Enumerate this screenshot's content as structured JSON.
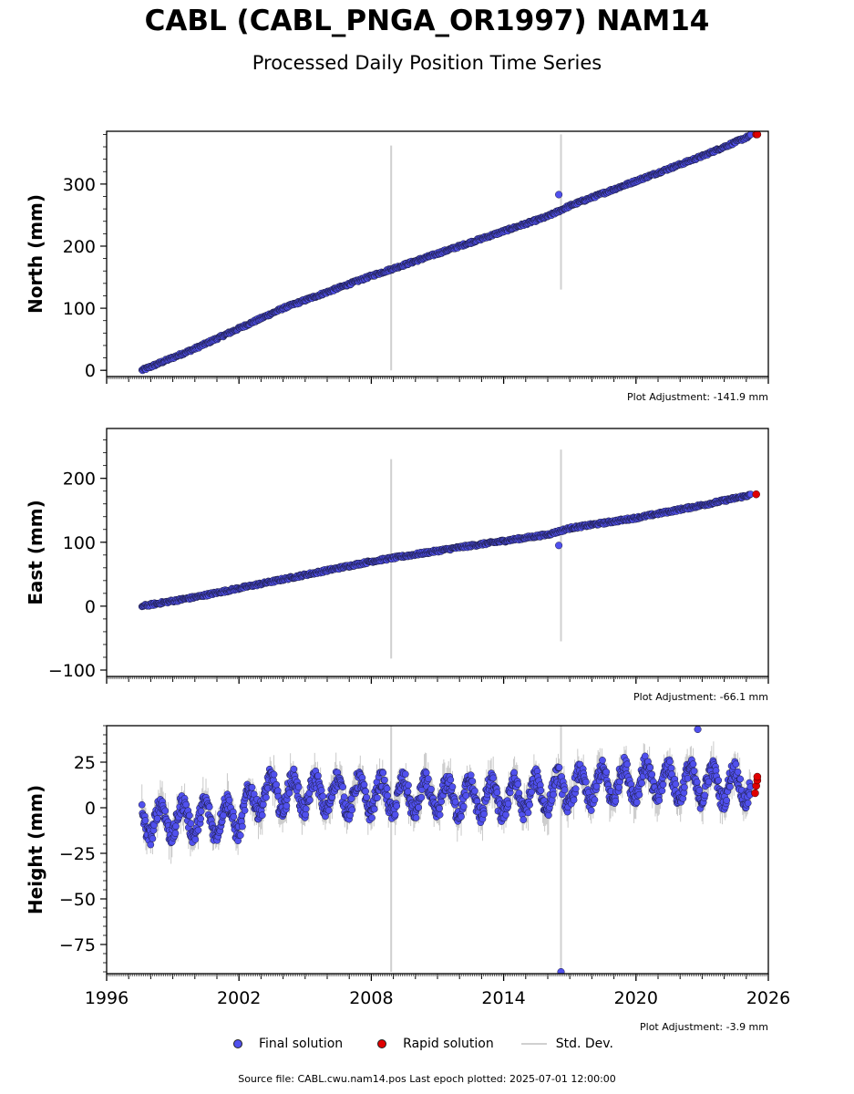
{
  "title": "CABL (CABL_PNGA_OR1997) NAM14",
  "subtitle": "Processed Daily Position Time Series",
  "legend": {
    "final": "Final solution",
    "rapid": "Rapid solution",
    "std": "Std. Dev."
  },
  "footer": "Source file: CABL.cwu.nam14.pos  Last epoch plotted: 2025-07-01 12:00:00",
  "colors": {
    "final": "#5050ee",
    "rapid": "#e00000",
    "std": "#d0d0d0",
    "edge": "#1a1a3a"
  },
  "chart_data": [
    {
      "type": "scatter",
      "ylabel": "North (mm)",
      "adjustment": "Plot Adjustment: -141.9 mm",
      "xlim": [
        1996,
        2026
      ],
      "ylim": [
        -10,
        385
      ],
      "yticks": [
        0,
        100,
        200,
        300
      ],
      "xticks": [
        1996,
        2002,
        2008,
        2014,
        2020,
        2026
      ],
      "series": [
        {
          "x": [
            1997.6,
            2000,
            2004,
            2008,
            2012,
            2016,
            2017.0,
            2020,
            2023,
            2025.2
          ],
          "y": [
            0,
            35,
            100,
            152,
            200,
            248,
            265,
            305,
            345,
            378
          ]
        }
      ],
      "rapid": {
        "x": [
          2025.45,
          2025.5
        ],
        "y": [
          380,
          380
        ]
      },
      "outliers": [
        {
          "x": 2016.5,
          "y": 283
        }
      ],
      "std_spikes": [
        {
          "x": 2008.9,
          "low": 0,
          "high": 362
        },
        {
          "x": 2016.6,
          "low": 130,
          "high": 380
        }
      ]
    },
    {
      "type": "scatter",
      "ylabel": "East (mm)",
      "adjustment": "Plot Adjustment: -66.1 mm",
      "xlim": [
        1996,
        2026
      ],
      "ylim": [
        -110,
        278
      ],
      "yticks": [
        -100,
        0,
        100,
        200
      ],
      "xticks": [
        1996,
        2002,
        2008,
        2014,
        2020,
        2026
      ],
      "series": [
        {
          "x": [
            1997.6,
            2000,
            2004,
            2008,
            2012,
            2016,
            2017.0,
            2020,
            2023,
            2025.2
          ],
          "y": [
            0,
            14,
            42,
            70,
            92,
            112,
            122,
            138,
            158,
            174
          ]
        }
      ],
      "rapid": {
        "x": [
          2025.45
        ],
        "y": [
          175
        ]
      },
      "outliers": [
        {
          "x": 2016.5,
          "y": 95
        }
      ],
      "std_spikes": [
        {
          "x": 2008.9,
          "low": -82,
          "high": 230
        },
        {
          "x": 2016.6,
          "low": -55,
          "high": 245
        }
      ]
    },
    {
      "type": "scatter",
      "ylabel": "Height (mm)",
      "adjustment": "Plot Adjustment: -3.9 mm",
      "xlim": [
        1996,
        2026
      ],
      "ylim": [
        -91,
        45
      ],
      "yticks": [
        -75,
        -50,
        -25,
        0,
        25
      ],
      "xticks": [
        1996,
        2002,
        2008,
        2014,
        2020,
        2026
      ],
      "series": [
        {
          "trend_x": [
            1997.6,
            2002,
            2003,
            2014,
            2020,
            2025.2
          ],
          "trend_y": [
            -7,
            -5,
            8,
            5,
            15,
            12
          ],
          "seasonal_amplitude": 9
        }
      ],
      "rapid": {
        "x": [
          2025.4,
          2025.45,
          2025.5,
          2025.5
        ],
        "y": [
          8,
          12,
          15,
          17
        ]
      },
      "outliers": [
        {
          "x": 2022.8,
          "y": 43
        },
        {
          "x": 2016.6,
          "y": -90
        }
      ],
      "std_spikes": [
        {
          "x": 2008.9,
          "low": -90,
          "high": 45
        },
        {
          "x": 2016.6,
          "low": -90,
          "high": 45
        }
      ]
    }
  ]
}
